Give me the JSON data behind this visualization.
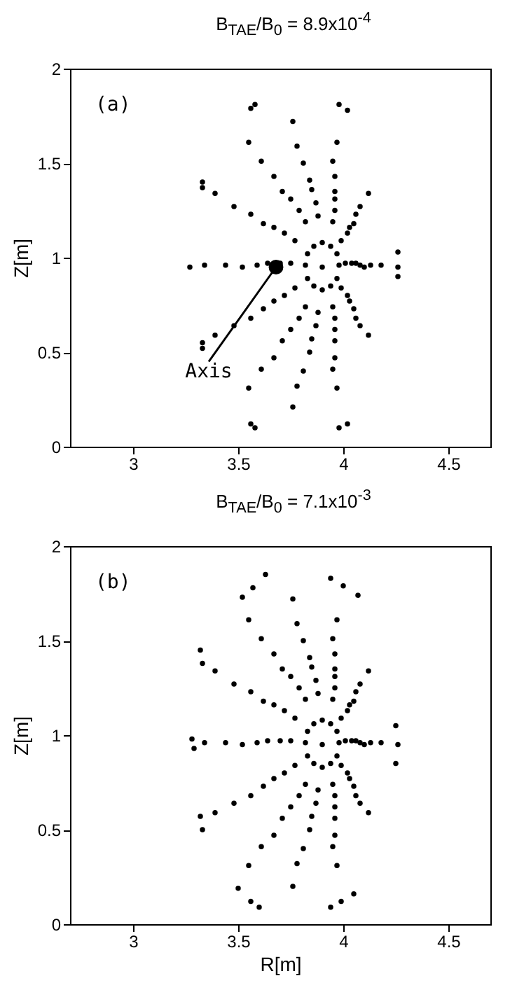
{
  "chart_data": [
    {
      "type": "scatter",
      "title": "B$_{TAE}$/B$_{0}$ = 8.9x10$^{-4}$",
      "ylabel": "Z[m]",
      "xlim": [
        2.7,
        4.7
      ],
      "ylim": [
        0,
        2
      ],
      "xticks": [
        3,
        3.5,
        4,
        4.5
      ],
      "yticks": [
        0,
        0.5,
        1,
        1.5,
        2
      ],
      "annotations": [
        "(a)"
      ],
      "series": [
        {
          "type": "bubble",
          "name": "Axis",
          "marker": "circle",
          "color": "#000000",
          "x": [
            3.68
          ],
          "values": [
            0.95
          ],
          "sizes": [
            1
          ]
        },
        {
          "type": "scatter",
          "marker": "circle",
          "color": "#000000",
          "x": [
            4.18,
            4.12,
            3.97,
            3.76,
            3.55,
            3.39,
            3.34,
            3.39,
            3.55,
            3.76,
            3.97,
            4.12
          ],
          "values": [
            0.96,
            1.34,
            1.61,
            1.72,
            1.61,
            1.34,
            0.96,
            0.59,
            0.31,
            0.21,
            0.31,
            0.59
          ]
        },
        {
          "type": "scatter",
          "marker": "circle",
          "color": "#000000",
          "x": [
            4.13,
            4.08,
            3.95,
            3.78,
            3.61,
            3.48,
            3.44,
            3.48,
            3.61,
            3.78,
            3.95,
            4.08
          ],
          "values": [
            0.96,
            1.27,
            1.51,
            1.59,
            1.51,
            1.27,
            0.96,
            0.64,
            0.41,
            0.32,
            0.41,
            0.64
          ]
        },
        {
          "type": "scatter",
          "marker": "circle",
          "color": "#000000",
          "x": [
            4.1,
            4.06,
            3.96,
            3.81,
            3.67,
            3.56,
            3.52,
            3.56,
            3.67,
            3.81,
            3.96,
            4.06
          ],
          "values": [
            0.95,
            1.23,
            1.43,
            1.5,
            1.43,
            1.23,
            0.95,
            0.68,
            0.47,
            0.4,
            0.47,
            0.68
          ]
        },
        {
          "type": "scatter",
          "marker": "circle",
          "color": "#000000",
          "x": [
            4.08,
            4.05,
            3.96,
            3.84,
            3.71,
            3.62,
            3.59,
            3.62,
            3.71,
            3.84,
            3.96,
            4.05
          ],
          "values": [
            0.96,
            1.18,
            1.35,
            1.41,
            1.35,
            1.18,
            0.96,
            0.73,
            0.56,
            0.5,
            0.56,
            0.73
          ]
        },
        {
          "type": "scatter",
          "marker": "circle",
          "color": "#000000",
          "x": [
            4.06,
            4.03,
            3.96,
            3.85,
            3.75,
            3.67,
            3.64,
            3.67,
            3.75,
            3.85,
            3.96,
            4.03
          ],
          "values": [
            0.97,
            1.16,
            1.31,
            1.36,
            1.31,
            1.16,
            0.97,
            0.77,
            0.62,
            0.57,
            0.62,
            0.77
          ]
        },
        {
          "type": "scatter",
          "marker": "circle",
          "color": "#000000",
          "x": [
            4.04,
            4.02,
            3.96,
            3.87,
            3.79,
            3.72,
            3.7,
            3.72,
            3.79,
            3.87,
            3.96,
            4.02
          ],
          "values": [
            0.97,
            1.13,
            1.25,
            1.29,
            1.25,
            1.13,
            0.97,
            0.8,
            0.68,
            0.64,
            0.68,
            0.8
          ]
        },
        {
          "type": "scatter",
          "marker": "circle",
          "color": "#000000",
          "x": [
            4.01,
            3.99,
            3.95,
            3.88,
            3.82,
            3.77,
            3.75,
            3.77,
            3.82,
            3.88,
            3.95,
            3.99
          ],
          "values": [
            0.97,
            1.09,
            1.19,
            1.22,
            1.19,
            1.09,
            0.97,
            0.84,
            0.74,
            0.71,
            0.74,
            0.84
          ]
        },
        {
          "type": "scatter",
          "marker": "circle",
          "color": "#000000",
          "x": [
            3.98,
            3.97,
            3.94,
            3.9,
            3.86,
            3.83,
            3.82,
            3.83,
            3.86,
            3.9,
            3.94,
            3.97
          ],
          "values": [
            0.96,
            1.02,
            1.06,
            1.08,
            1.06,
            1.02,
            0.96,
            0.89,
            0.85,
            0.83,
            0.85,
            0.89
          ]
        },
        {
          "type": "scatter",
          "marker": "circle",
          "color": "#000000",
          "x": [
            3.56,
            3.58,
            3.98,
            4.02,
            3.56,
            3.58,
            3.98,
            4.02,
            3.33,
            3.33,
            3.33,
            3.33,
            3.27,
            4.26,
            4.26,
            4.26,
            3.9
          ],
          "values": [
            1.79,
            1.81,
            1.81,
            1.78,
            0.12,
            0.1,
            0.1,
            0.12,
            1.4,
            1.37,
            0.55,
            0.52,
            0.95,
            1.03,
            0.95,
            0.9,
            0.95
          ]
        }
      ]
    },
    {
      "type": "scatter",
      "title": "B$_{TAE}$/B$_{0}$ = 7.1x10$^{-3}$",
      "xlabel": "R[m]",
      "ylabel": "Z[m]",
      "xlim": [
        2.7,
        4.7
      ],
      "ylim": [
        0,
        2
      ],
      "xticks": [
        3,
        3.5,
        4,
        4.5
      ],
      "yticks": [
        0,
        0.5,
        1,
        1.5,
        2
      ],
      "annotations": [
        "(b)"
      ],
      "series": [
        {
          "type": "scatter",
          "marker": "circle",
          "color": "#000000",
          "x": [
            4.18,
            4.12,
            3.97,
            3.76,
            3.55,
            3.39,
            3.34,
            3.39,
            3.55,
            3.76,
            3.97,
            4.12
          ],
          "values": [
            0.96,
            1.34,
            1.61,
            1.72,
            1.61,
            1.34,
            0.96,
            0.59,
            0.31,
            0.2,
            0.31,
            0.59
          ]
        },
        {
          "type": "scatter",
          "marker": "circle",
          "color": "#000000",
          "x": [
            4.08,
            4.05,
            3.96,
            3.84,
            3.71,
            3.62,
            3.59,
            3.62,
            3.71,
            3.84,
            3.96,
            4.05
          ],
          "values": [
            0.96,
            1.18,
            1.35,
            1.41,
            1.35,
            1.18,
            0.96,
            0.73,
            0.56,
            0.5,
            0.56,
            0.73
          ]
        },
        {
          "type": "scatter",
          "marker": "circle",
          "color": "#000000",
          "x": [
            4.06,
            4.03,
            3.96,
            3.85,
            3.75,
            3.67,
            3.64,
            3.67,
            3.75,
            3.85,
            3.96,
            4.03
          ],
          "values": [
            0.97,
            1.16,
            1.31,
            1.36,
            1.31,
            1.16,
            0.97,
            0.77,
            0.62,
            0.57,
            0.62,
            0.77
          ]
        },
        {
          "type": "scatter",
          "marker": "circle",
          "color": "#000000",
          "x": [
            4.04,
            4.02,
            3.96,
            3.87,
            3.79,
            3.72,
            3.7,
            3.72,
            3.79,
            3.87,
            3.96,
            4.02
          ],
          "values": [
            0.97,
            1.13,
            1.25,
            1.29,
            1.25,
            1.13,
            0.97,
            0.8,
            0.68,
            0.64,
            0.68,
            0.8
          ]
        },
        {
          "type": "scatter",
          "marker": "circle",
          "color": "#000000",
          "x": [
            4.01,
            3.99,
            3.95,
            3.88,
            3.82,
            3.77,
            3.75,
            3.77,
            3.82,
            3.88,
            3.95,
            3.99
          ],
          "values": [
            0.97,
            1.09,
            1.19,
            1.22,
            1.19,
            1.09,
            0.97,
            0.84,
            0.74,
            0.71,
            0.74,
            0.84
          ]
        },
        {
          "type": "scatter",
          "marker": "circle",
          "color": "#000000",
          "x": [
            3.98,
            3.97,
            3.94,
            3.9,
            3.86,
            3.83,
            3.82,
            3.83,
            3.86,
            3.9,
            3.94,
            3.97
          ],
          "values": [
            0.96,
            1.02,
            1.06,
            1.08,
            1.06,
            1.02,
            0.96,
            0.89,
            0.85,
            0.83,
            0.85,
            0.89
          ]
        },
        {
          "type": "scatter",
          "marker": "circle",
          "color": "#000000",
          "x": [
            4.13,
            4.08,
            3.95,
            3.78,
            3.61,
            3.48,
            3.44,
            3.48,
            3.61,
            3.78,
            3.95,
            4.08,
            4.1,
            4.06,
            3.96,
            3.81,
            3.67,
            3.56,
            3.52,
            3.56,
            3.67,
            3.81,
            3.96,
            4.06,
            3.52,
            3.57,
            3.63,
            3.94,
            4.0,
            4.07,
            3.5,
            3.56,
            3.6,
            3.94,
            3.99,
            4.05,
            3.32,
            3.33,
            3.32,
            3.33,
            3.28,
            3.29,
            4.25,
            4.26,
            4.25,
            3.9
          ],
          "values": [
            0.96,
            1.27,
            1.51,
            1.59,
            1.51,
            1.27,
            0.96,
            0.64,
            0.41,
            0.32,
            0.41,
            0.64,
            0.95,
            1.23,
            1.43,
            1.5,
            1.43,
            1.23,
            0.95,
            0.68,
            0.47,
            0.4,
            0.47,
            0.68,
            1.73,
            1.78,
            1.85,
            1.83,
            1.79,
            1.74,
            0.19,
            0.12,
            0.09,
            0.09,
            0.12,
            0.16,
            1.45,
            1.38,
            0.57,
            0.5,
            0.98,
            0.93,
            1.05,
            0.95,
            0.85,
            0.95
          ]
        }
      ]
    }
  ]
}
